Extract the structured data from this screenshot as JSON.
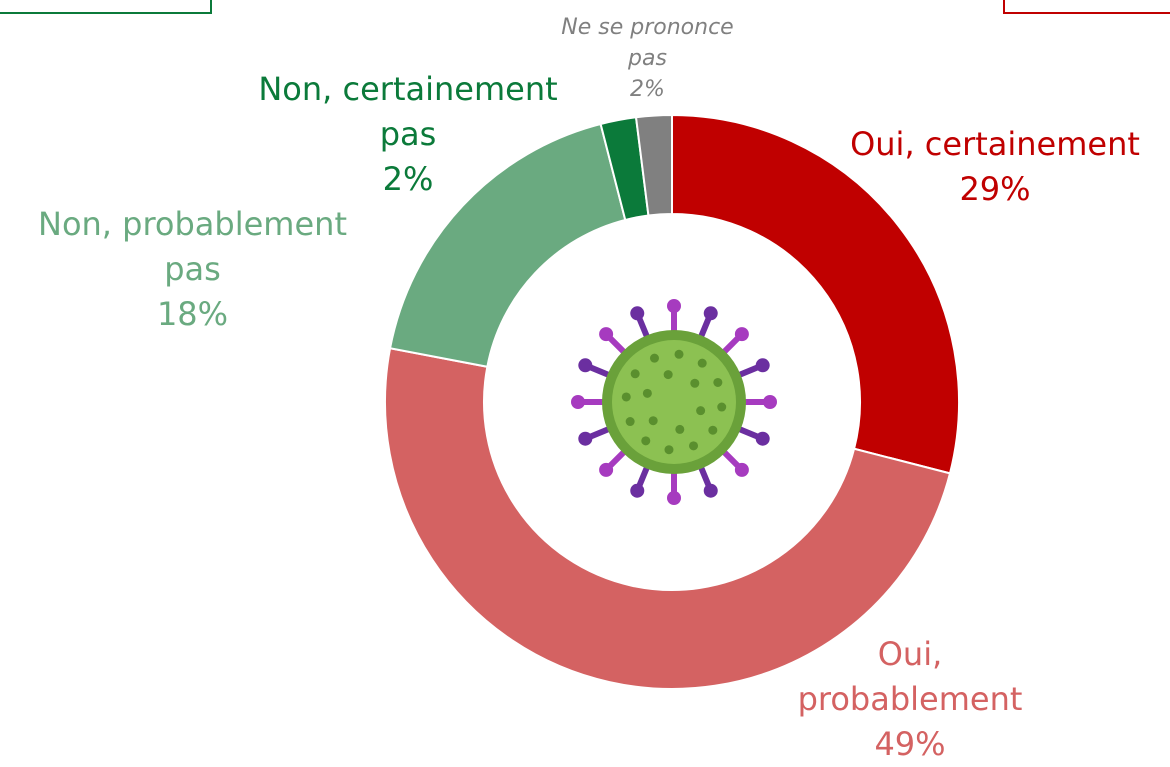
{
  "chart_data": {
    "type": "donut",
    "categories": [
      "Oui, certainement",
      "Oui, probablement",
      "Non, probablement pas",
      "Non, certainement pas",
      "Ne se prononce pas"
    ],
    "values": [
      29,
      49,
      18,
      2,
      2
    ],
    "value_labels": [
      "29%",
      "49%",
      "18%",
      "2%",
      "2%"
    ],
    "colors": [
      "#c00000",
      "#d46262",
      "#6aaa80",
      "#0b7a3a",
      "#808080"
    ]
  }
}
